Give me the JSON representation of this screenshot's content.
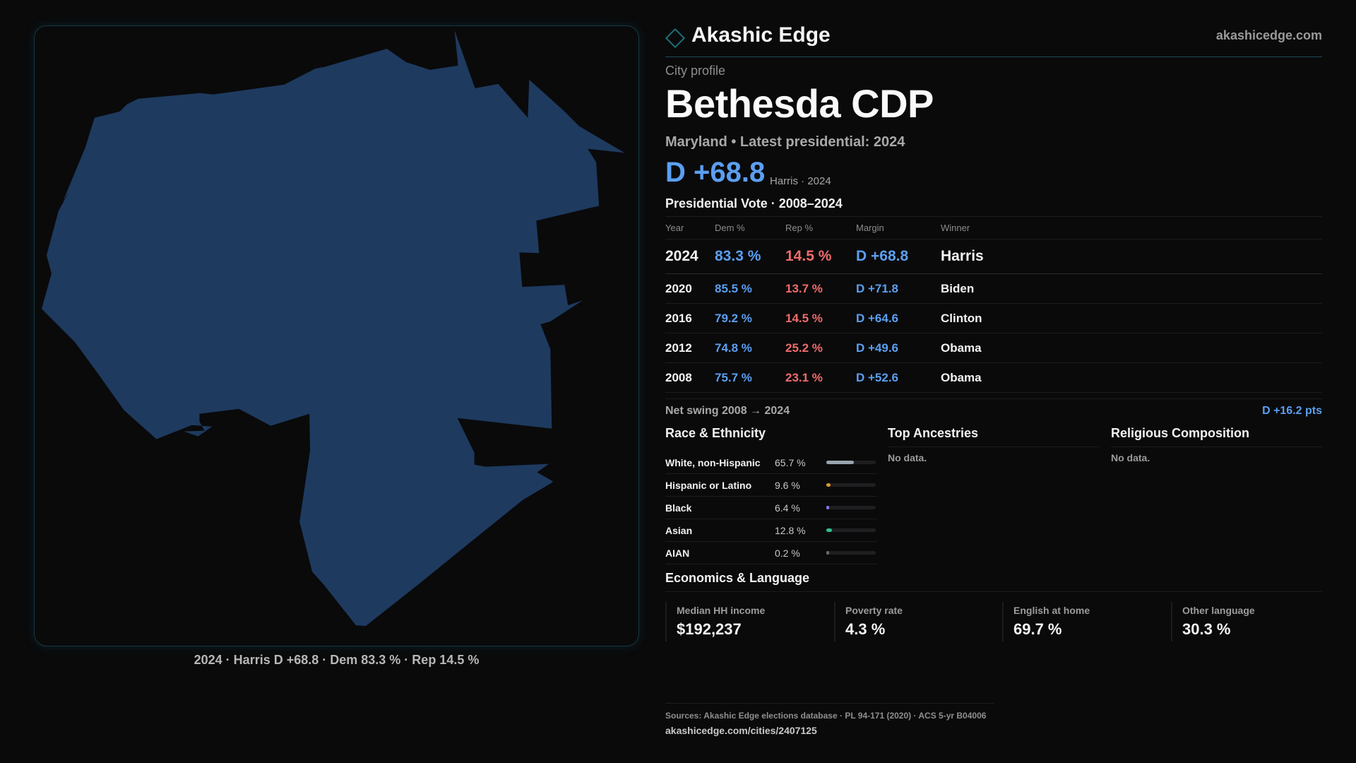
{
  "map": {
    "fill_color": "#1e3a5f",
    "caption": "2024 · Harris D +68.8 · Dem 83.3 % · Rep 14.5 %"
  },
  "header": {
    "brand": "Akashic Edge",
    "site": "akashicedge.com"
  },
  "profile": {
    "label": "City profile",
    "name": "Bethesda CDP",
    "subtitle": "Maryland • Latest presidential: 2024",
    "margin": "D +68.8",
    "margin_note": "Harris · 2024"
  },
  "presidential": {
    "title": "Presidential Vote · 2008–2024",
    "headers": {
      "year": "Year",
      "dem": "Dem %",
      "rep": "Rep %",
      "margin": "Margin",
      "winner": "Winner"
    },
    "rows": [
      {
        "year": "2024",
        "dem": "83.3 %",
        "rep": "14.5 %",
        "margin": "D +68.8",
        "winner": "Harris"
      },
      {
        "year": "2020",
        "dem": "85.5 %",
        "rep": "13.7 %",
        "margin": "D +71.8",
        "winner": "Biden"
      },
      {
        "year": "2016",
        "dem": "79.2 %",
        "rep": "14.5 %",
        "margin": "D +64.6",
        "winner": "Clinton"
      },
      {
        "year": "2012",
        "dem": "74.8 %",
        "rep": "25.2 %",
        "margin": "D +49.6",
        "winner": "Obama"
      },
      {
        "year": "2008",
        "dem": "75.7 %",
        "rep": "23.1 %",
        "margin": "D +52.6",
        "winner": "Obama"
      }
    ],
    "swing_label": "Net swing 2008 → 2024",
    "swing_value": "D +16.2 pts"
  },
  "race": {
    "title": "Race & Ethnicity",
    "items": [
      {
        "name": "White, non-Hispanic",
        "pct": "65.7 %",
        "value": 65.7,
        "color": "#9aa4b0"
      },
      {
        "name": "Hispanic or Latino",
        "pct": "9.6 %",
        "value": 9.6,
        "color": "#e0962c"
      },
      {
        "name": "Black",
        "pct": "6.4 %",
        "value": 6.4,
        "color": "#8b73e6"
      },
      {
        "name": "Asian",
        "pct": "12.8 %",
        "value": 12.8,
        "color": "#2fbf8a"
      },
      {
        "name": "AIAN",
        "pct": "0.2 %",
        "value": 0.2,
        "color": "#6b6b6b"
      }
    ]
  },
  "ancestries": {
    "title": "Top Ancestries",
    "empty": "No data."
  },
  "religion": {
    "title": "Religious Composition",
    "empty": "No data."
  },
  "economics": {
    "title": "Economics & Language",
    "stats": [
      {
        "label": "Median HH income",
        "value": "$192,237"
      },
      {
        "label": "Poverty rate",
        "value": "4.3 %"
      },
      {
        "label": "English at home",
        "value": "69.7 %"
      },
      {
        "label": "Other language",
        "value": "30.3 %"
      }
    ]
  },
  "footer": {
    "sources": "Sources: Akashic Edge elections database · PL 94-171 (2020) · ACS 5-yr B04006",
    "url": "akashicedge.com/cities/2407125"
  }
}
